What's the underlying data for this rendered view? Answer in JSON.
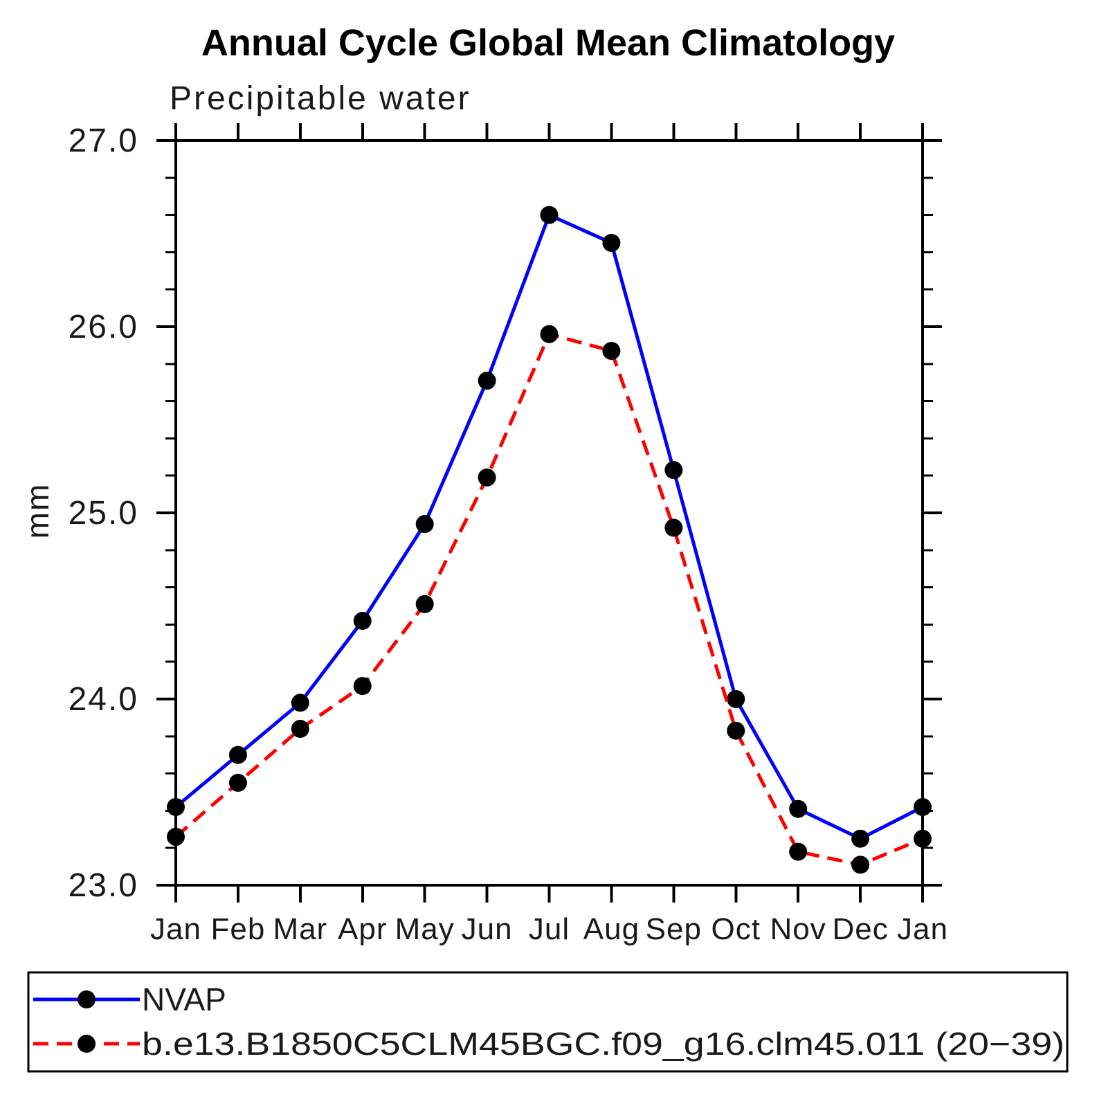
{
  "title": "Annual Cycle Global Mean Climatology",
  "chart_data": {
    "type": "line",
    "title": "Annual Cycle Global Mean Climatology",
    "subtitle": "Precipitable water",
    "ylabel": "mm",
    "xlabel": "",
    "ylim": [
      23.0,
      27.0
    ],
    "y_major_ticks": [
      23.0,
      24.0,
      25.0,
      26.0,
      27.0
    ],
    "y_tick_labels": [
      "23.0",
      "24.0",
      "25.0",
      "26.0",
      "27.0"
    ],
    "y_minor_step": 0.2,
    "grid": false,
    "legend_position": "bottom",
    "categories": [
      "Jan",
      "Feb",
      "Mar",
      "Apr",
      "May",
      "Jun",
      "Jul",
      "Aug",
      "Sep",
      "Oct",
      "Nov",
      "Dec",
      "Jan"
    ],
    "series": [
      {
        "name": "NVAP",
        "color": "#0000ff",
        "line_style": "solid",
        "marker": "circle",
        "marker_color": "#000000",
        "values": [
          23.42,
          23.7,
          23.98,
          24.42,
          24.94,
          25.71,
          26.6,
          26.45,
          25.23,
          24.0,
          23.41,
          23.25,
          23.42
        ]
      },
      {
        "name": "b.e13.B1850C5CLM45BGC.f09_g16.clm45.011 (20−39)",
        "color": "#ff0000",
        "line_style": "dashed",
        "marker": "circle",
        "marker_color": "#000000",
        "values": [
          23.26,
          23.55,
          23.84,
          24.07,
          24.51,
          25.19,
          25.96,
          25.87,
          24.92,
          23.83,
          23.18,
          23.11,
          23.25
        ]
      }
    ]
  },
  "colors": {
    "axis": "#000000",
    "background": "#ffffff",
    "nvap_line": "#0000ff",
    "model_line": "#ff0000",
    "marker": "#000000"
  }
}
